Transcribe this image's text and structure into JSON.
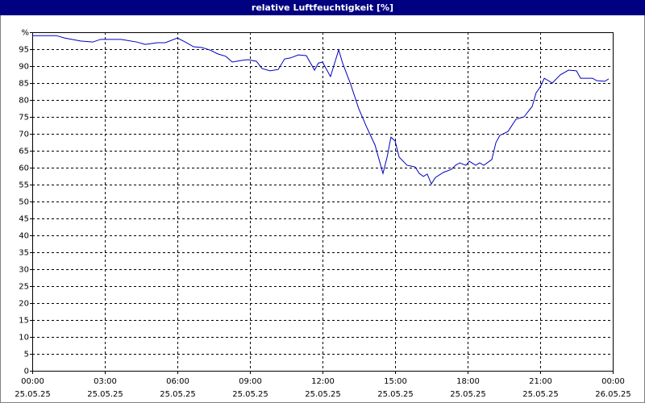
{
  "chart_data": {
    "type": "line",
    "title": "relative Luftfeuchtigkeit [%]",
    "x": [
      0,
      1,
      1.33,
      2,
      2.5,
      2.83,
      3.67,
      4.33,
      4.67,
      5.17,
      5.5,
      6,
      6.33,
      6.67,
      7,
      7.33,
      7.67,
      8,
      8.27,
      8.67,
      8.93,
      9.27,
      9.5,
      9.83,
      10.17,
      10.43,
      10.67,
      11,
      11.33,
      11.67,
      11.83,
      12,
      12.33,
      12.67,
      12.83,
      13.17,
      13.5,
      13.83,
      14.17,
      14.5,
      14.67,
      14.83,
      15,
      15.17,
      15.5,
      15.83,
      16,
      16.17,
      16.33,
      16.5,
      16.67,
      17,
      17.33,
      17.5,
      17.67,
      17.93,
      18.07,
      18.33,
      18.5,
      18.67,
      19,
      19.17,
      19.33,
      19.67,
      20,
      20.33,
      20.67,
      20.83,
      21,
      21.17,
      21.5,
      21.83,
      22.17,
      22.5,
      22.67,
      23.17,
      23.33,
      23.67,
      23.83
    ],
    "series": [
      {
        "color": "#0000c0",
        "values": [
          99,
          99,
          98.3,
          97.4,
          97.1,
          97.9,
          97.9,
          97.1,
          96.4,
          96.9,
          96.9,
          98.3,
          97.1,
          95.7,
          95.5,
          94.8,
          93.6,
          92.9,
          91.2,
          91.7,
          91.9,
          91.4,
          89.3,
          88.6,
          89,
          92.1,
          92.4,
          93.3,
          93.1,
          88.8,
          90.9,
          91.2,
          86.9,
          94.8,
          90.9,
          84.5,
          77.4,
          71.9,
          66.7,
          58.3,
          63.1,
          69,
          67.9,
          63.1,
          60.7,
          60.2,
          58.3,
          57.4,
          58.1,
          55.2,
          57.1,
          58.6,
          59.5,
          60.7,
          61.4,
          60.7,
          61.9,
          60.7,
          61.4,
          60.7,
          62.4,
          67.4,
          69.5,
          70.7,
          74.3,
          75,
          78.1,
          82.1,
          83.8,
          86.4,
          85,
          87.4,
          88.8,
          88.6,
          86.4,
          86.4,
          85.7,
          85.5,
          86.2
        ]
      }
    ],
    "xlim": [
      0,
      24
    ],
    "xticks": [
      {
        "value": 0,
        "label": "00:00"
      },
      {
        "value": 3,
        "label": "03:00"
      },
      {
        "value": 6,
        "label": "06:00"
      },
      {
        "value": 9,
        "label": "09:00"
      },
      {
        "value": 12,
        "label": "12:00"
      },
      {
        "value": 15,
        "label": "15:00"
      },
      {
        "value": 18,
        "label": "18:00"
      },
      {
        "value": 21,
        "label": "21:00"
      },
      {
        "value": 24,
        "label": "00:00"
      }
    ],
    "xtick_dates": [
      "25.05.25",
      "25.05.25",
      "25.05.25",
      "25.05.25",
      "25.05.25",
      "25.05.25",
      "25.05.25",
      "25.05.25",
      "26.05.25"
    ],
    "ylim": [
      0,
      100
    ],
    "yticks": [
      0,
      5,
      10,
      15,
      20,
      25,
      30,
      35,
      40,
      45,
      50,
      55,
      60,
      65,
      70,
      75,
      80,
      85,
      90,
      95,
      {
        "value": 100,
        "label": "%"
      }
    ],
    "grid": true
  }
}
